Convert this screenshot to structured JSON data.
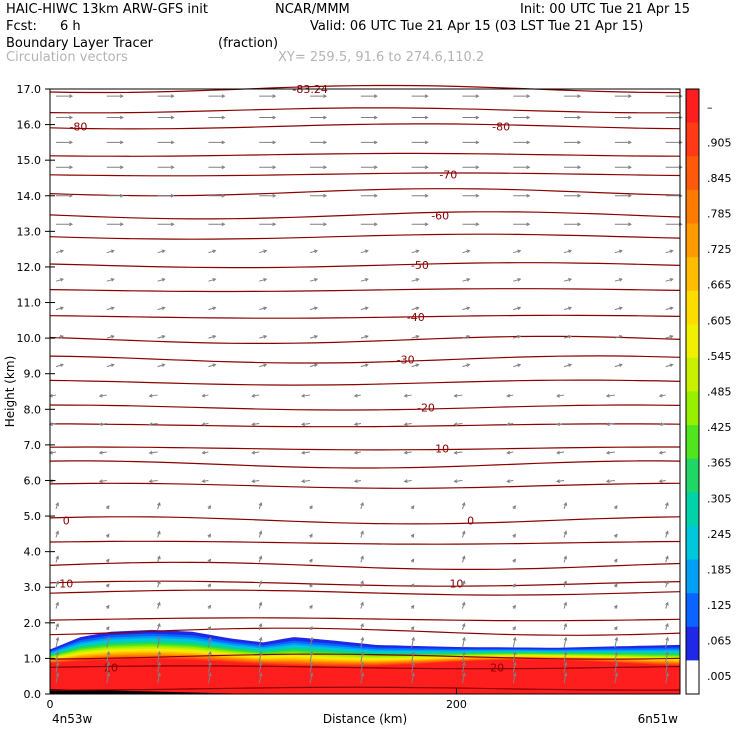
{
  "header": {
    "model": "HAIC-HIWC 13km ARW-GFS init",
    "org": "NCAR/MMM",
    "init": "Init: 00 UTC Tue 21 Apr 15",
    "fcst_label": "Fcst:",
    "fcst_value": "6 h",
    "valid": "Valid: 06 UTC Tue 21 Apr 15 (03 LST Tue 21 Apr 15)",
    "field": "Boundary Layer Tracer",
    "units": "(fraction)",
    "overlay": "Circulation vectors",
    "xy": "XY= 259.5, 91.6 to 274.6,110.2"
  },
  "chart_data": {
    "type": "heatmap",
    "title": "Boundary Layer Tracer",
    "subtitle": "Circulation vectors",
    "xlabel": "Distance (km)",
    "ylabel": "Height (km)",
    "xlim": [
      0,
      310
    ],
    "ylim": [
      0,
      17
    ],
    "x_ticks": [
      0,
      200
    ],
    "x_tick_labels": [
      "0",
      "200"
    ],
    "x_end_labels": {
      "left": "4n53w",
      "right": "6n51w"
    },
    "y_ticks": [
      "0.0",
      "1.0",
      "2.0",
      "3.0",
      "4.0",
      "5.0",
      "6.0",
      "7.0",
      "8.0",
      "9.0",
      "10.0",
      "11.0",
      "12.0",
      "13.0",
      "14.0",
      "15.0",
      "16.0",
      "17.0"
    ],
    "colorbar": {
      "labels": [
        "–",
        ".905",
        ".845",
        ".785",
        ".725",
        ".665",
        ".605",
        ".545",
        ".485",
        ".425",
        ".365",
        ".305",
        ".245",
        ".185",
        ".125",
        ".065",
        ".005"
      ],
      "colors": [
        "#ff1e1e",
        "#ff3a14",
        "#ff5a0a",
        "#ff7a00",
        "#ff9a00",
        "#ffbc00",
        "#ffdc00",
        "#f0f000",
        "#c8f000",
        "#96f000",
        "#50e61e",
        "#1ed764",
        "#00d2aa",
        "#00c8dc",
        "#00a0f5",
        "#0a64ff",
        "#1e28e6",
        "#ffffff"
      ]
    },
    "boundary_layer_top_km": [
      {
        "x": 0,
        "y": 1.25
      },
      {
        "x": 15,
        "y": 1.6
      },
      {
        "x": 30,
        "y": 1.75
      },
      {
        "x": 50,
        "y": 1.8
      },
      {
        "x": 70,
        "y": 1.75
      },
      {
        "x": 90,
        "y": 1.55
      },
      {
        "x": 105,
        "y": 1.45
      },
      {
        "x": 120,
        "y": 1.6
      },
      {
        "x": 140,
        "y": 1.5
      },
      {
        "x": 160,
        "y": 1.38
      },
      {
        "x": 200,
        "y": 1.32
      },
      {
        "x": 250,
        "y": 1.3
      },
      {
        "x": 310,
        "y": 1.38
      }
    ],
    "temperature_contours": [
      {
        "label": "20",
        "y": 0.75,
        "label_x": [
          30,
          220
        ]
      },
      {
        "label": "10",
        "y": 3.1,
        "label_x": [
          8,
          200
        ]
      },
      {
        "label": "0",
        "y": 4.88,
        "label_x": [
          8,
          207
        ]
      },
      {
        "label": "-10",
        "y": 6.9,
        "label_x": [
          192
        ]
      },
      {
        "label": "-20",
        "y": 8.05,
        "label_x": [
          185
        ]
      },
      {
        "label": "-30",
        "y": 9.4,
        "label_x": [
          175
        ]
      },
      {
        "label": "-40",
        "y": 10.6,
        "label_x": [
          180
        ]
      },
      {
        "label": "-50",
        "y": 12.05,
        "label_x": [
          182
        ]
      },
      {
        "label": "-60",
        "y": 13.45,
        "label_x": [
          192
        ]
      },
      {
        "label": "-70",
        "y": 14.6,
        "label_x": [
          196
        ]
      },
      {
        "label": "-80",
        "y": 15.95,
        "label_x": [
          14,
          222
        ]
      },
      {
        "label": "-83.24",
        "y": 17.0,
        "label_x": [
          128
        ]
      }
    ],
    "extra_contour_levels_km": [
      0.15,
      1.05,
      1.75,
      2.1,
      2.85,
      3.6,
      4.25,
      5.85,
      6.45,
      7.55,
      8.75,
      9.95,
      11.35,
      12.85,
      14.1,
      15.15,
      16.4
    ],
    "vector_columns_km": [
      0,
      25,
      50,
      75,
      100,
      125,
      150,
      175,
      200,
      225,
      250,
      275,
      300
    ],
    "vector_rows_km": [
      0.3,
      0.6,
      0.9,
      1.3,
      1.8,
      2.4,
      3.0,
      3.7,
      4.4,
      5.2,
      6.0,
      6.8,
      7.6,
      8.4,
      9.2,
      10.0,
      10.8,
      11.6,
      12.4,
      13.2,
      14.0,
      14.8,
      15.5,
      16.2,
      16.8
    ]
  },
  "colors": {
    "contour": "#8b0000",
    "vector": "#808080",
    "axis": "#000000"
  }
}
